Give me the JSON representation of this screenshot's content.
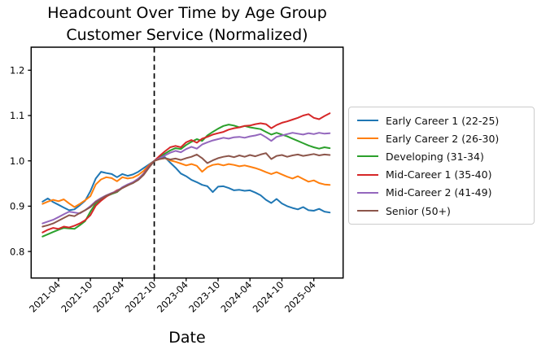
{
  "chart_data": {
    "type": "line",
    "title_line1": "Headcount Over Time by Age Group",
    "title_line2": "Customer Service (Normalized)",
    "xlabel": "Date",
    "x_freq": "monthly",
    "x_start": "2021-01",
    "x_end": "2025-07",
    "x_tick_labels": [
      "2021-04",
      "2021-10",
      "2022-04",
      "2022-10",
      "2023-04",
      "2023-10",
      "2024-04",
      "2024-10",
      "2025-04"
    ],
    "y_tick_labels": [
      "0.8",
      "0.9",
      "1.0",
      "1.1",
      "1.2"
    ],
    "ylim": [
      0.742,
      1.251
    ],
    "grid": false,
    "legend_position": "outside-right",
    "vline": {
      "x": "2022-10",
      "style": "dashed",
      "color": "#000000"
    },
    "series": [
      {
        "name": "Early Career 1 (22-25)",
        "color": "#1f77b4",
        "values": [
          0.91,
          0.917,
          0.909,
          0.903,
          0.897,
          0.891,
          0.893,
          0.902,
          0.912,
          0.933,
          0.961,
          0.976,
          0.973,
          0.971,
          0.964,
          0.971,
          0.967,
          0.97,
          0.976,
          0.984,
          0.992,
          1.0,
          1.006,
          1.008,
          0.996,
          0.985,
          0.972,
          0.966,
          0.958,
          0.953,
          0.947,
          0.944,
          0.931,
          0.943,
          0.944,
          0.94,
          0.935,
          0.936,
          0.934,
          0.935,
          0.93,
          0.924,
          0.914,
          0.907,
          0.916,
          0.906,
          0.9,
          0.896,
          0.893,
          0.898,
          0.891,
          0.89,
          0.894,
          0.888,
          0.886
        ]
      },
      {
        "name": "Early Career 2 (26-30)",
        "color": "#ff7f0e",
        "values": [
          0.905,
          0.91,
          0.914,
          0.911,
          0.915,
          0.906,
          0.898,
          0.905,
          0.913,
          0.922,
          0.948,
          0.959,
          0.964,
          0.962,
          0.955,
          0.964,
          0.961,
          0.963,
          0.969,
          0.978,
          0.99,
          1.0,
          1.004,
          1.006,
          1.001,
          0.998,
          0.994,
          0.99,
          0.993,
          0.989,
          0.976,
          0.986,
          0.991,
          0.993,
          0.99,
          0.993,
          0.991,
          0.988,
          0.99,
          0.987,
          0.984,
          0.98,
          0.975,
          0.971,
          0.975,
          0.97,
          0.965,
          0.961,
          0.966,
          0.96,
          0.954,
          0.957,
          0.951,
          0.948,
          0.947
        ]
      },
      {
        "name": "Developing (31-34)",
        "color": "#2ca02c",
        "values": [
          0.833,
          0.838,
          0.843,
          0.848,
          0.852,
          0.851,
          0.85,
          0.858,
          0.867,
          0.888,
          0.906,
          0.915,
          0.922,
          0.927,
          0.931,
          0.941,
          0.947,
          0.951,
          0.96,
          0.972,
          0.987,
          1.0,
          1.008,
          1.016,
          1.023,
          1.028,
          1.026,
          1.035,
          1.042,
          1.048,
          1.044,
          1.056,
          1.064,
          1.071,
          1.077,
          1.08,
          1.078,
          1.074,
          1.077,
          1.074,
          1.072,
          1.07,
          1.064,
          1.058,
          1.062,
          1.058,
          1.054,
          1.049,
          1.044,
          1.039,
          1.034,
          1.03,
          1.027,
          1.03,
          1.028
        ]
      },
      {
        "name": "Mid-Career 1 (35-40)",
        "color": "#d62728",
        "values": [
          0.842,
          0.848,
          0.852,
          0.85,
          0.855,
          0.853,
          0.857,
          0.862,
          0.869,
          0.88,
          0.901,
          0.912,
          0.921,
          0.928,
          0.935,
          0.94,
          0.946,
          0.952,
          0.959,
          0.972,
          0.988,
          1.0,
          1.011,
          1.021,
          1.03,
          1.033,
          1.03,
          1.041,
          1.046,
          1.04,
          1.049,
          1.053,
          1.058,
          1.061,
          1.064,
          1.069,
          1.072,
          1.074,
          1.077,
          1.078,
          1.081,
          1.083,
          1.081,
          1.072,
          1.079,
          1.084,
          1.087,
          1.091,
          1.095,
          1.1,
          1.103,
          1.095,
          1.092,
          1.099,
          1.105
        ]
      },
      {
        "name": "Mid-Career 2 (41-49)",
        "color": "#9467bd",
        "values": [
          0.862,
          0.866,
          0.87,
          0.876,
          0.882,
          0.888,
          0.886,
          0.884,
          0.891,
          0.9,
          0.911,
          0.918,
          0.924,
          0.929,
          0.933,
          0.942,
          0.948,
          0.953,
          0.961,
          0.971,
          0.986,
          1.0,
          1.006,
          1.012,
          1.018,
          1.022,
          1.019,
          1.026,
          1.031,
          1.027,
          1.036,
          1.041,
          1.045,
          1.048,
          1.051,
          1.049,
          1.052,
          1.053,
          1.051,
          1.054,
          1.056,
          1.059,
          1.052,
          1.044,
          1.053,
          1.056,
          1.059,
          1.062,
          1.06,
          1.058,
          1.061,
          1.059,
          1.062,
          1.06,
          1.061
        ]
      },
      {
        "name": "Senior (50+)",
        "color": "#8c564b",
        "values": [
          0.855,
          0.858,
          0.862,
          0.868,
          0.874,
          0.88,
          0.878,
          0.885,
          0.891,
          0.898,
          0.909,
          0.916,
          0.923,
          0.928,
          0.932,
          0.94,
          0.946,
          0.951,
          0.958,
          0.969,
          0.985,
          1.0,
          1.004,
          1.006,
          1.003,
          1.005,
          1.002,
          1.006,
          1.009,
          1.014,
          1.006,
          0.995,
          1.001,
          1.006,
          1.009,
          1.011,
          1.008,
          1.012,
          1.009,
          1.013,
          1.01,
          1.014,
          1.017,
          1.004,
          1.011,
          1.013,
          1.009,
          1.012,
          1.014,
          1.011,
          1.013,
          1.015,
          1.012,
          1.014,
          1.013
        ]
      }
    ]
  }
}
